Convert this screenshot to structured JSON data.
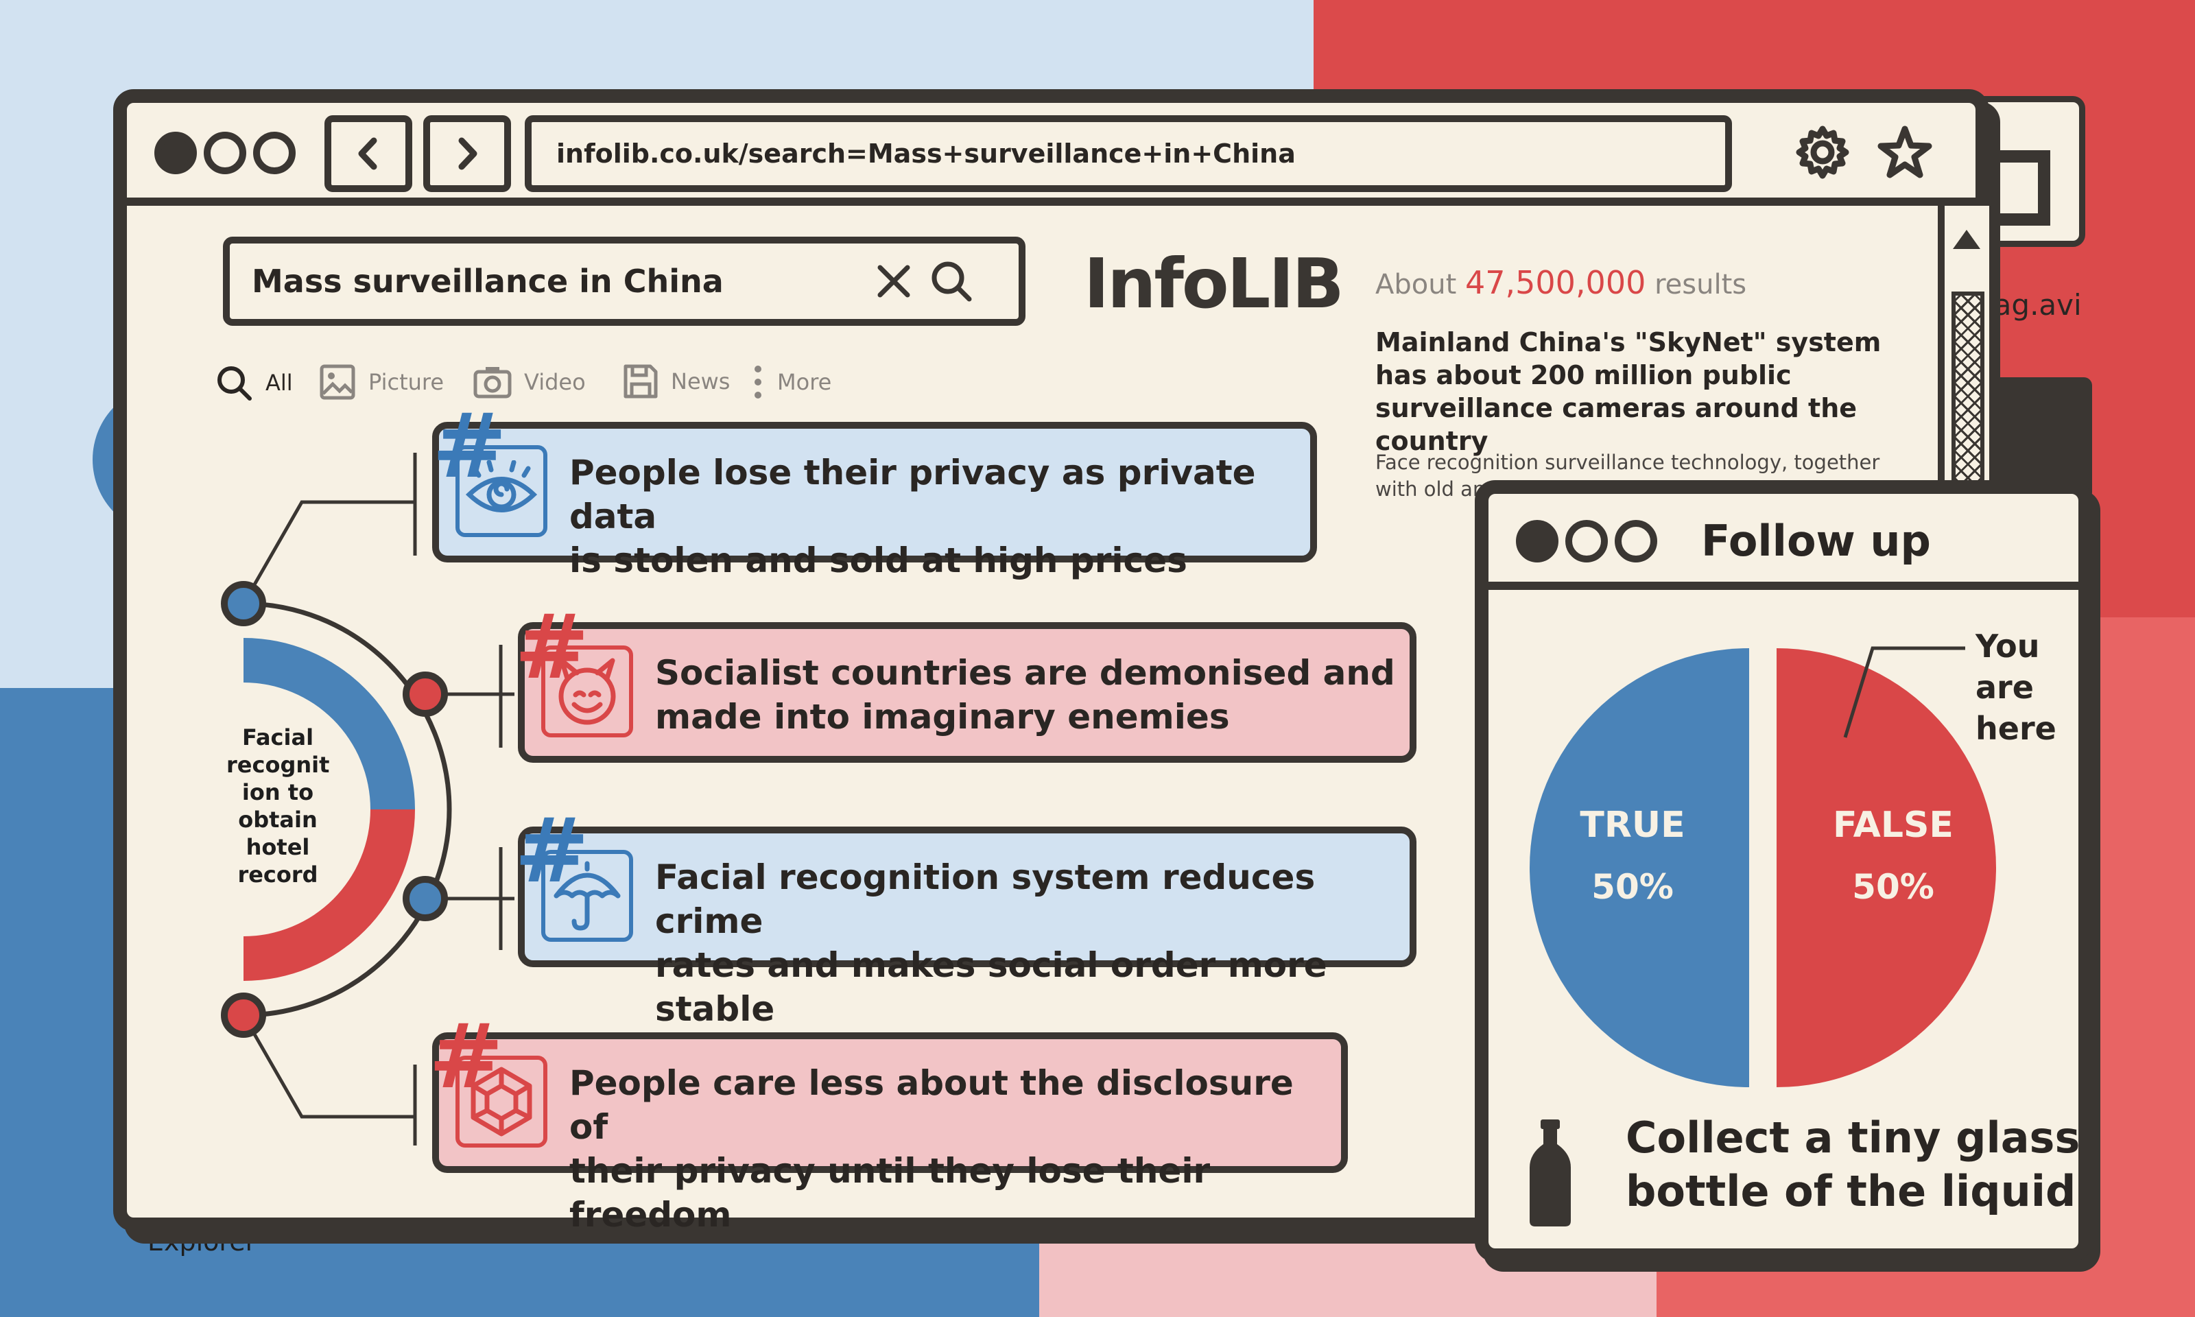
{
  "browser": {
    "url": "infolib.co.uk/search=Mass+surveillance+in+China",
    "back_icon": "chevron-left-icon",
    "forward_icon": "chevron-right-icon",
    "settings_icon": "gear-icon",
    "bookmark_icon": "star-icon"
  },
  "search": {
    "query": "Mass surveillance in China",
    "clear_icon": "close-icon",
    "submit_icon": "search-icon"
  },
  "logo": "InfoLIB",
  "filters": [
    {
      "label": "All",
      "icon": "search-icon"
    },
    {
      "label": "Picture",
      "icon": "image-icon"
    },
    {
      "label": "Video",
      "icon": "camera-icon"
    },
    {
      "label": "News",
      "icon": "save-icon"
    },
    {
      "label": "More",
      "icon": "more-vertical-icon"
    }
  ],
  "results": {
    "prefix": "About",
    "count": "47,500,000",
    "suffix": "results"
  },
  "snippet": {
    "title": "Mainland China's \"SkyNet\" system has about 200 million public surveillance cameras around the country",
    "body": "Face recognition surveillance technology, together with old and trac persona for arres"
  },
  "diagram": {
    "center_label": "Facial recognit ion to obtain hotel record",
    "cards": [
      {
        "text_line1": "People lose their privacy as private data",
        "text_line2": "is stolen and sold at high prices",
        "icon": "eye-icon",
        "color": "blue"
      },
      {
        "text_line1": "Socialist countries are demonised and",
        "text_line2": "made into imaginary enemies",
        "icon": "devil-face-icon",
        "color": "red"
      },
      {
        "text_line1": "Facial recognition system reduces crime",
        "text_line2": "rates and makes social order more stable",
        "icon": "umbrella-icon",
        "color": "blue"
      },
      {
        "text_line1": "People care less about the disclosure of",
        "text_line2": "their privacy until they lose their freedom",
        "icon": "hexagon-cube-icon",
        "color": "red"
      }
    ]
  },
  "desktop": {
    "file_label": "iag.avi",
    "explorer_label": "Explorer"
  },
  "follow_up": {
    "title": "Follow up",
    "you_are_here": [
      "You",
      "are",
      "here"
    ],
    "bottle_text_line1": "Collect a tiny glass",
    "bottle_text_line2": "bottle of the liquid",
    "bottle_icon": "bottle-icon"
  },
  "chart_data": {
    "type": "pie",
    "categories": [
      "TRUE",
      "FALSE"
    ],
    "values": [
      50,
      50
    ],
    "labels": [
      "50%",
      "50%"
    ],
    "colors": [
      "#4a83b8",
      "#d94748"
    ]
  },
  "colors": {
    "blue": "#4a83b8",
    "red": "#d94748",
    "ink": "#3a3632",
    "paper": "#f7f1e4"
  }
}
